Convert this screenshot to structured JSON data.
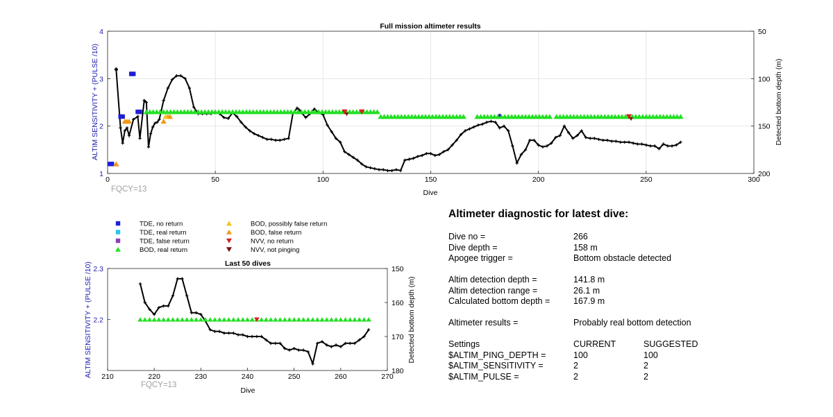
{
  "colors": {
    "text_blue": "#2020b0",
    "fqcy_gray": "#a0a0a0",
    "track": "#000000",
    "grid": "#e6e6e6"
  },
  "legend": [
    {
      "label": "TDE, no return",
      "shape": "square",
      "color": "#1f1fd6"
    },
    {
      "label": "TDE, real return",
      "shape": "square",
      "color": "#27c6e8"
    },
    {
      "label": "TDE, false return",
      "shape": "square",
      "color": "#8c3fb5"
    },
    {
      "label": "BOD, real return",
      "shape": "triangle-up",
      "color": "#22e022"
    },
    {
      "label": "BOD, possibly false return",
      "shape": "triangle-up",
      "color": "#f2c21a"
    },
    {
      "label": "BOD, false return",
      "shape": "triangle-up",
      "color": "#ef9a17"
    },
    {
      "label": "NVV, no return",
      "shape": "triangle-down",
      "color": "#d62020"
    },
    {
      "label": "NVV, not pinging",
      "shape": "triangle-down",
      "color": "#7a1010"
    }
  ],
  "diagnostic": {
    "title": "Altimeter diagnostic for latest dive:",
    "dive_no_label": "Dive no =",
    "dive_no": "266",
    "dive_depth_label": "Dive depth =",
    "dive_depth": "158 m",
    "apogee_label": "Apogee trigger =",
    "apogee": "Bottom obstacle detected",
    "det_depth_label": "Altim detection depth =",
    "det_depth": "141.8 m",
    "det_range_label": "Altim detection range =",
    "det_range": "26.1 m",
    "calc_depth_label": "Calculated bottom depth =",
    "calc_depth": "167.9 m",
    "results_label": "Altimeter results =",
    "results": "Probably real bottom detection",
    "settings_label": "Settings",
    "current_label": "CURRENT",
    "suggested_label": "SUGGESTED",
    "settings": [
      {
        "name": "$ALTIM_PING_DEPTH =",
        "current": "100",
        "suggested": "100"
      },
      {
        "name": "$ALTIM_SENSITIVITY =",
        "current": "2",
        "suggested": "2"
      },
      {
        "name": "$ALTIM_PULSE =",
        "current": "2",
        "suggested": "2"
      }
    ]
  },
  "chart_data": [
    {
      "id": "full",
      "type": "scatter",
      "title": "Full mission altimeter results",
      "xlabel": "Dive",
      "ylabel_left": "ALTIM SENSITIVITY + (PULSE /10)",
      "ylabel_right": "Detected bottom depth (m)",
      "annotation": "FQCY=13",
      "xlim": [
        0,
        300
      ],
      "ylim_left": [
        1,
        4
      ],
      "ylim_right": [
        50,
        200
      ],
      "right_axis_reversed": true,
      "grid": true,
      "x_ticks": [
        0,
        50,
        100,
        150,
        200,
        250,
        300
      ],
      "y_ticks_left": [
        1,
        2,
        3,
        4
      ],
      "y_ticks_right": [
        50,
        100,
        150,
        200
      ],
      "bottom_depth_track": {
        "x": [
          1,
          4,
          6,
          7,
          8,
          9,
          10,
          12,
          14,
          15,
          17,
          18,
          19,
          20,
          21,
          22,
          23,
          24,
          26,
          28,
          30,
          32,
          34,
          36,
          38,
          40,
          42,
          44,
          46,
          48,
          50,
          52,
          54,
          56,
          58,
          60,
          62,
          64,
          66,
          68,
          70,
          72,
          74,
          76,
          78,
          80,
          82,
          84,
          86,
          88,
          89,
          90,
          92,
          94,
          96,
          98,
          100,
          102,
          104,
          106,
          108,
          110,
          112,
          114,
          116,
          118,
          120,
          122,
          124,
          126,
          128,
          130,
          132,
          134,
          136,
          138,
          140,
          142,
          144,
          146,
          148,
          150,
          152,
          154,
          156,
          158,
          160,
          162,
          164,
          166,
          168,
          170,
          172,
          174,
          176,
          178,
          180,
          182,
          184,
          186,
          188,
          190,
          192,
          194,
          196,
          198,
          200,
          202,
          204,
          206,
          208,
          210,
          212,
          214,
          216,
          218,
          220,
          222,
          224,
          226,
          228,
          230,
          232,
          234,
          236,
          238,
          240,
          242,
          244,
          246,
          248,
          250,
          252,
          254,
          256,
          258,
          260,
          262,
          264,
          266
        ],
        "y": [
          null,
          91,
          152,
          168,
          155,
          152,
          160,
          143,
          140,
          163,
          123,
          125,
          172,
          158,
          151,
          147,
          146,
          143,
          123,
          110,
          101,
          97,
          97,
          100,
          110,
          130,
          137,
          137,
          137,
          137,
          136,
          137,
          141,
          142,
          136,
          140,
          146,
          151,
          155,
          158,
          160,
          162,
          164,
          164,
          165,
          165,
          164,
          163,
          137,
          131,
          133,
          136,
          141,
          137,
          132,
          136,
          138,
          149,
          156,
          163,
          167,
          177,
          180,
          183,
          186,
          190,
          193,
          194,
          195,
          196,
          196,
          197,
          197,
          196,
          197,
          186,
          185,
          184,
          182,
          181,
          179,
          179,
          181,
          180,
          177,
          175,
          170,
          165,
          159,
          155,
          153,
          151,
          149,
          148,
          146,
          145,
          146,
          152,
          150,
          155,
          171,
          189,
          180,
          175,
          165,
          165,
          170,
          172,
          171,
          168,
          162,
          160,
          150,
          157,
          163,
          160,
          155,
          162,
          163,
          163,
          164,
          165,
          165,
          166,
          166,
          167,
          167,
          167,
          168,
          169,
          169,
          170,
          171,
          171,
          174,
          169,
          171,
          171,
          170,
          167
        ]
      },
      "tde_no_return": {
        "x": [
          1,
          2,
          6,
          7,
          11,
          12,
          14,
          15
        ],
        "y": [
          1.2,
          1.2,
          2.2,
          2.2,
          3.1,
          3.1,
          2.3,
          2.3
        ]
      },
      "tde_no_return_marker": {
        "x": [
          4
        ],
        "y": [
          3.2
        ]
      },
      "bod_real_return": {
        "x_start": 18,
        "x_end": 266,
        "y_main": 2.3,
        "y_late": 2.2,
        "late_from": 126,
        "gaps": [
          [
            166,
            170
          ],
          [
            206,
            208
          ]
        ]
      },
      "bod_false_return": {
        "x": [
          4,
          8,
          9,
          10,
          26,
          28,
          29
        ],
        "y": [
          1.2,
          2.1,
          2.1,
          2.1,
          2.1,
          2.2,
          2.2
        ]
      },
      "bod_possibly_false_return": {
        "x": [
          27
        ],
        "y": [
          2.2
        ]
      },
      "nvv_no_return": {
        "x": [
          110,
          118,
          242
        ],
        "y": [
          2.3,
          2.3,
          2.2
        ]
      },
      "nvv_not_pinging": {
        "x": [
          111,
          243
        ],
        "y": [
          2.25,
          2.15
        ]
      },
      "tde_real_return_small": {
        "x": [
          182
        ],
        "y": [
          2.2
        ]
      }
    },
    {
      "id": "last50",
      "type": "scatter",
      "title": "Last 50 dives",
      "xlabel": "Dive",
      "ylabel_left": "ALTIM SENSITIVITY + (PULSE /10)",
      "ylabel_right": "Detected bottom depth (m)",
      "annotation": "FQCY=13",
      "xlim": [
        210,
        270
      ],
      "ylim_left": [
        2.1,
        2.3
      ],
      "ylim_right": [
        150,
        180
      ],
      "right_axis_reversed": true,
      "x_ticks": [
        210,
        220,
        230,
        240,
        250,
        260,
        270
      ],
      "y_ticks_left": [
        2.2,
        2.3
      ],
      "y_ticks_right": [
        150,
        160,
        170,
        180
      ],
      "bottom_depth_track": {
        "x": [
          217,
          218,
          219,
          220,
          221,
          222,
          223,
          224,
          225,
          226,
          227,
          228,
          229,
          230,
          231,
          232,
          233,
          234,
          235,
          236,
          237,
          238,
          239,
          240,
          241,
          242,
          243,
          244,
          245,
          246,
          247,
          248,
          249,
          250,
          251,
          252,
          253,
          254,
          255,
          256,
          257,
          258,
          259,
          260,
          261,
          262,
          263,
          264,
          265,
          266
        ],
        "y": [
          154.5,
          160,
          162,
          163.5,
          161.5,
          161,
          161,
          158,
          153,
          153,
          158,
          163,
          163,
          163.5,
          165.5,
          168,
          168.5,
          168.5,
          169,
          169,
          169,
          169.5,
          169.5,
          170,
          170,
          170,
          170,
          171,
          172,
          172,
          172,
          173.5,
          174,
          173.5,
          174,
          174,
          174.5,
          178,
          172,
          171.5,
          172.5,
          173,
          172.5,
          173,
          172,
          172,
          172,
          171,
          170,
          168
        ]
      },
      "bod_real_return": {
        "x_start": 217,
        "x_end": 266,
        "y": 2.2
      },
      "nvv_no_return": {
        "x": [
          242
        ],
        "y": [
          2.2
        ]
      }
    }
  ]
}
